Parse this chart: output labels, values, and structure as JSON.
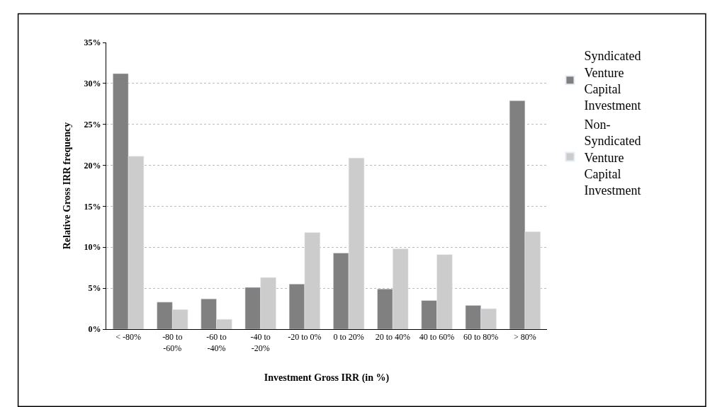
{
  "chart_data": {
    "type": "bar",
    "xlabel": "Investment Gross IRR (in %)",
    "ylabel": "Relative Gross IRR frequency",
    "categories": [
      "< -80%",
      "-80 to\n-60%",
      "-60 to\n-40%",
      "-40 to\n-20%",
      "-20 to 0%",
      "0 to 20%",
      "20 to 40%",
      "40 to 60%",
      "60 to 80%",
      "> 80%"
    ],
    "series": [
      {
        "name": "Syndicated\nVenture\nCapital\nInvestment",
        "color": "#808080",
        "values": [
          31.2,
          3.3,
          3.7,
          5.1,
          5.5,
          9.3,
          4.9,
          3.5,
          2.9,
          27.9
        ]
      },
      {
        "name": "Non-\nSyndicated\nVenture\nCapital\nInvestment",
        "color": "#cccccc",
        "values": [
          21.1,
          2.4,
          1.2,
          6.3,
          11.8,
          20.9,
          9.8,
          9.1,
          2.5,
          11.9
        ]
      }
    ],
    "ylim": [
      0,
      35
    ],
    "yticks": [
      {
        "value": 0,
        "label": "0%"
      },
      {
        "value": 5,
        "label": "5%"
      },
      {
        "value": 10,
        "label": "10%"
      },
      {
        "value": 15,
        "label": "15%"
      },
      {
        "value": 20,
        "label": "20%"
      },
      {
        "value": 25,
        "label": "25%"
      },
      {
        "value": 30,
        "label": "30%"
      },
      {
        "value": 35,
        "label": "35%"
      }
    ],
    "grid": "y",
    "legend": "right"
  }
}
